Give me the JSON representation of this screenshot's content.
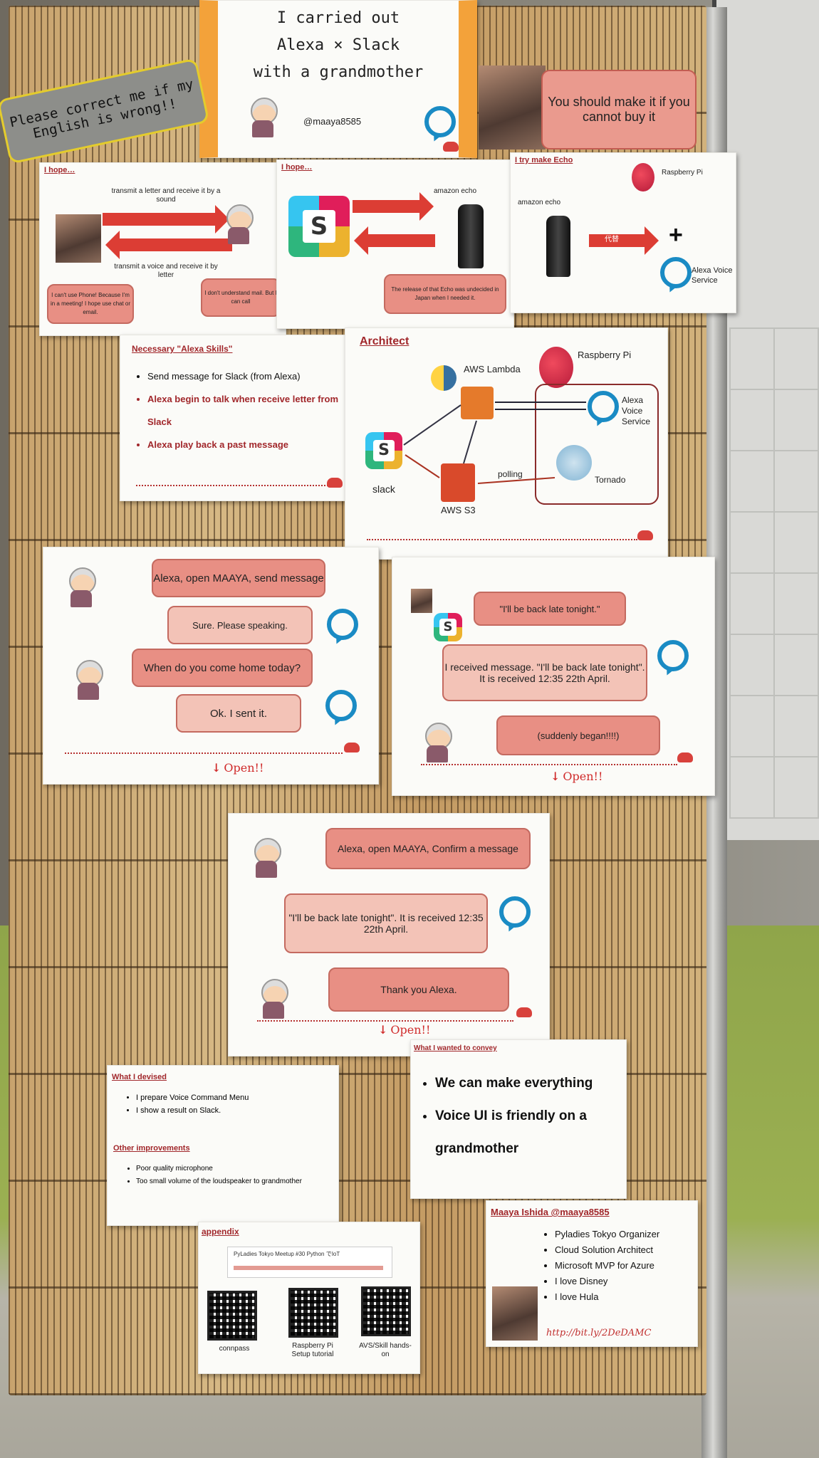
{
  "poster": {
    "title_lines": [
      "I carried out",
      "Alexa × Slack",
      "with a grandmother"
    ],
    "handle": "@maaya8585"
  },
  "correction_note": "Please correct me if my English is wrong!!",
  "buy_note": "You should make it if you cannot buy it",
  "hope1": {
    "title": "I hope…",
    "top_arrow_label": "transmit a letter and receive it by a sound",
    "bottom_arrow_label": "transmit a voice and receive it by letter",
    "left_bubble": "I can't use Phone! Because I'm in a meeting! I hope use chat or email.",
    "right_bubble": "I don't understand mail. But I can call"
  },
  "hope2": {
    "title": "I hope…",
    "echo_label": "amazon echo",
    "bubble": "The release of that Echo was undecided in Japan when I needed it."
  },
  "trymake": {
    "title": "I try make Echo",
    "echo_label": "amazon echo",
    "rpi_label": "Raspberry Pi",
    "arrow_label": "代替",
    "avs_label": "Alexa Voice Service"
  },
  "skills": {
    "title": "Necessary \"Alexa Skills\"",
    "items": [
      "Send message for Slack (from Alexa)",
      "Alexa begin to talk when receive letter from Slack",
      "Alexa play back a past message"
    ]
  },
  "architect": {
    "title": "Architect",
    "lambda": "AWS Lambda",
    "rpi": "Raspberry Pi",
    "avs": "Alexa Voice Service",
    "slack": "slack",
    "s3": "AWS S3",
    "polling": "polling",
    "tornado": "Tornado"
  },
  "dialog1": {
    "b1": "Alexa, open MAAYA, send message",
    "b2": "Sure. Please speaking.",
    "b3": "When do you come home today?",
    "b4": "Ok. I sent it.",
    "open": "Open!!"
  },
  "dialog2": {
    "b1": "\"I'll be back late tonight.\"",
    "b2": "I received message. \"I'll be back late tonight\". It is received 12:35 22th April.",
    "b3": "(suddenly began!!!!)",
    "open": "Open!!"
  },
  "dialog3": {
    "b1": "Alexa, open MAAYA, Confirm a message",
    "b2": "\"I'll be back late tonight\". It is received 12:35 22th April.",
    "b3": "Thank you Alexa.",
    "open": "Open!!"
  },
  "devised": {
    "title": "What I devised",
    "items": [
      "I prepare Voice Command Menu",
      "I show a result on Slack."
    ],
    "other_title": "Other improvements",
    "other_items": [
      "Poor quality microphone",
      "Too small volume of the loudspeaker to grandmother"
    ]
  },
  "convey": {
    "title": "What I wanted to convey",
    "items": [
      "We can make everything",
      "Voice UI is friendly on a grandmother"
    ]
  },
  "appendix": {
    "title": "appendix",
    "banner": "PyLadies Tokyo Meetup #30 Python でIoT",
    "qr_labels": [
      "connpass",
      "Raspberry Pi Setup tutorial",
      "AVS/Skill hands-on"
    ]
  },
  "profile": {
    "title": "Maaya Ishida @maaya8585",
    "items": [
      "Pyladies Tokyo Organizer",
      "Cloud Solution Architect",
      "Microsoft MVP for Azure",
      "I love Disney",
      "I love Hula"
    ],
    "link": "http://bit.ly/2DeDAMC"
  },
  "colors": {
    "accent_red": "#a1272b",
    "bubble": "#e88f84",
    "alexa_blue": "#1a8bc4"
  }
}
